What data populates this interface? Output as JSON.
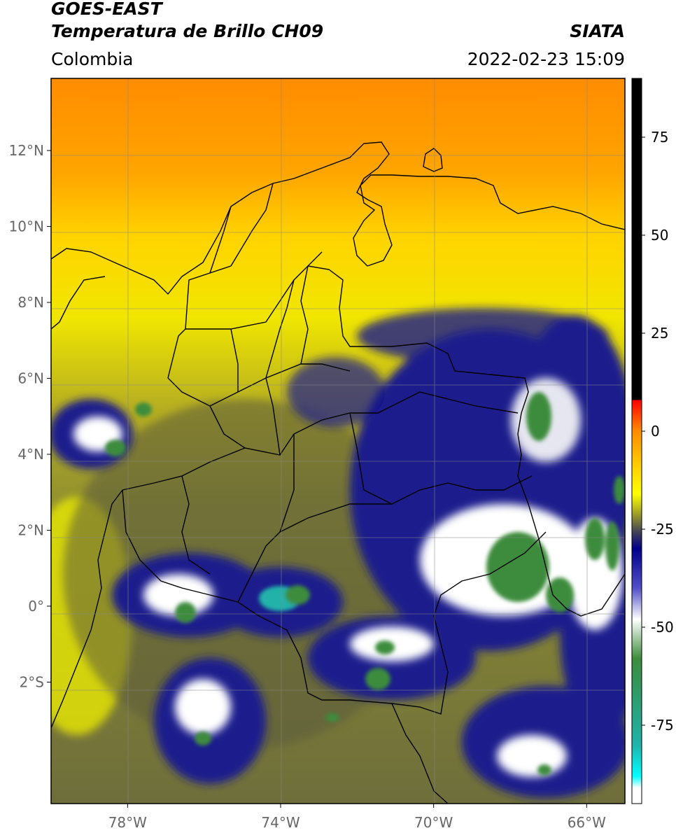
{
  "header": {
    "satellite": "GOES-EAST",
    "product": "Temperatura de Brillo CH09",
    "region": "Colombia",
    "organization": "SIATA",
    "datetime": "2022-02-23 15:09"
  },
  "map": {
    "lon_range": [
      -80.0,
      -65.0
    ],
    "lat_range": [
      -5.2,
      13.9
    ],
    "lat_ticks": [
      {
        "value": 12,
        "label": "12°N"
      },
      {
        "value": 10,
        "label": "10°N"
      },
      {
        "value": 8,
        "label": "8°N"
      },
      {
        "value": 6,
        "label": "6°N"
      },
      {
        "value": 4,
        "label": "4°N"
      },
      {
        "value": 2,
        "label": "2°N"
      },
      {
        "value": 0,
        "label": "0°"
      },
      {
        "value": -2,
        "label": "2°S"
      }
    ],
    "lon_ticks": [
      {
        "value": -78,
        "label": "78°W"
      },
      {
        "value": -74,
        "label": "74°W"
      },
      {
        "value": -70,
        "label": "70°W"
      },
      {
        "value": -66,
        "label": "66°W"
      }
    ],
    "gridlines": true
  },
  "colorbar": {
    "range": [
      -95,
      90
    ],
    "ticks": [
      {
        "value": 75,
        "label": "75"
      },
      {
        "value": 50,
        "label": "50"
      },
      {
        "value": 25,
        "label": "25"
      },
      {
        "value": 0,
        "label": "0"
      },
      {
        "value": -25,
        "label": "-25"
      },
      {
        "value": -50,
        "label": "-50"
      },
      {
        "value": -75,
        "label": "-75"
      }
    ],
    "stops": [
      {
        "value": 90,
        "color": "#000000"
      },
      {
        "value": 8,
        "color": "#000000"
      },
      {
        "value": 7.9,
        "color": "#ff0000"
      },
      {
        "value": 0,
        "color": "#ff8c00"
      },
      {
        "value": -10,
        "color": "#ffd700"
      },
      {
        "value": -16,
        "color": "#ffff00"
      },
      {
        "value": -22,
        "color": "#8c8c32"
      },
      {
        "value": -26,
        "color": "#3c3c5a"
      },
      {
        "value": -30,
        "color": "#00008b"
      },
      {
        "value": -40,
        "color": "#5050c8"
      },
      {
        "value": -48,
        "color": "#ffffff"
      },
      {
        "value": -58,
        "color": "#3c8c3c"
      },
      {
        "value": -80,
        "color": "#20b2aa"
      },
      {
        "value": -88,
        "color": "#00ffff"
      },
      {
        "value": -91,
        "color": "#ffffff"
      },
      {
        "value": -95,
        "color": "#ffffff"
      }
    ]
  }
}
